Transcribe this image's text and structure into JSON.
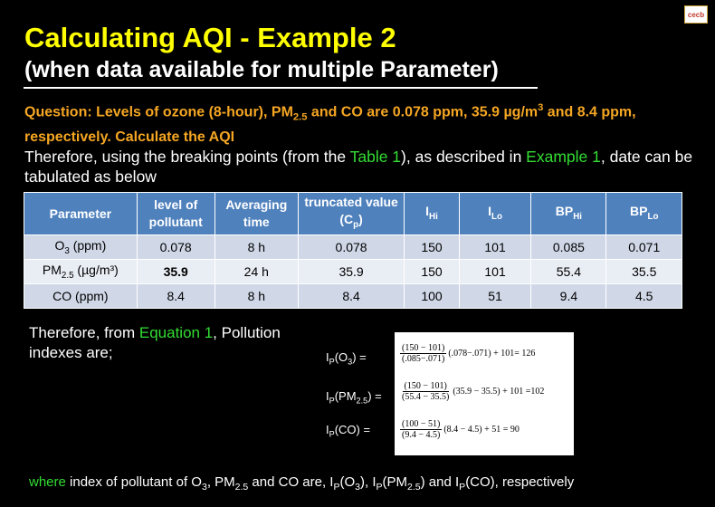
{
  "logo": {
    "text": "cecb"
  },
  "header": {
    "title": "Calculating AQI - Example 2",
    "subtitle": "(when data available for multiple Parameter)"
  },
  "question": {
    "part1": "Question: Levels of ozone (8-hour), PM",
    "part1_sub": "2.5",
    "part2": " and CO are 0.078 ppm,  35.9 µg/m",
    "part2_sup": "3",
    "part3": " and 8.4 ppm, respectively. Calculate the AQI"
  },
  "intro": {
    "part1": "Therefore, using the breaking points (from the ",
    "link_table": "Table 1",
    "part2": "), as described in ",
    "link_example": "Example 1",
    "part3": ", date can be tabulated as below"
  },
  "table": {
    "headers": {
      "parameter": "Parameter",
      "level": "level of pollutant",
      "averaging": "Averaging time",
      "truncated": "truncated value (C",
      "truncated_sub": "p",
      "truncated_end": ")",
      "ihi": "I",
      "ihi_sub": "Hi",
      "ilo": "I",
      "ilo_sub": "Lo",
      "bphi": "BP",
      "bphi_sub": "Hi",
      "bplo": "BP",
      "bplo_sub": "Lo"
    },
    "rows": [
      {
        "param": "O",
        "param_sub": "3",
        "param_end": " (ppm)",
        "level": "0.078",
        "avg": "8 h",
        "trunc": "0.078",
        "ihi": "150",
        "ilo": "101",
        "bphi": "0.085",
        "bplo": "0.071"
      },
      {
        "param": "PM",
        "param_sub": "2.5",
        "param_end": " (µg/m³)",
        "level": "35.9",
        "avg": "24 h",
        "trunc": "35.9",
        "ihi": "150",
        "ilo": "101",
        "bphi": "55.4",
        "bplo": "35.5"
      },
      {
        "param": "CO (ppm)",
        "param_sub": "",
        "param_end": "",
        "level": "8.4",
        "avg": "8 h",
        "trunc": "8.4",
        "ihi": "100",
        "ilo": "51",
        "bphi": "9.4",
        "bplo": "4.5"
      }
    ]
  },
  "therefore": {
    "part1": "Therefore, from ",
    "link": "Equation 1",
    "part2": ", Pollution indexes are;"
  },
  "equations": {
    "labels": [
      {
        "pre": "I",
        "sub": "P",
        "mid": "(O",
        "sub2": "3",
        "post": ")   ="
      },
      {
        "pre": "I",
        "sub": "P",
        "mid": "(PM",
        "sub2": "2.5",
        "post": ")   ="
      },
      {
        "pre": "I",
        "sub": "P",
        "mid": "(CO)",
        "sub2": "",
        "post": "   ="
      }
    ],
    "formulas": [
      {
        "num": "(150 − 101)",
        "den": "(.085−.071)",
        "rest": "(.078−.071) + 101= 126"
      },
      {
        "num": "(150 − 101)",
        "den": "(55.4 − 35.5)",
        "rest": "(35.9 − 35.5) + 101 =102"
      },
      {
        "num": "(100 − 51)",
        "den": "(9.4 − 4.5)",
        "rest": "(8.4 − 4.5) + 51 = 90"
      }
    ]
  },
  "footer": {
    "where": "where",
    "text1": " index of pollutant of O",
    "sub1": "3",
    "text2": ", PM",
    "sub2": "2.5",
    "text3": " and CO are, I",
    "sub3": "P",
    "text4": "(O",
    "sub4": "3",
    "text5": "), I",
    "sub5": "P",
    "text6": "(PM",
    "sub6": "2.5",
    "text7": ") and  I",
    "sub7": "P",
    "text8": "(CO), respectively"
  }
}
